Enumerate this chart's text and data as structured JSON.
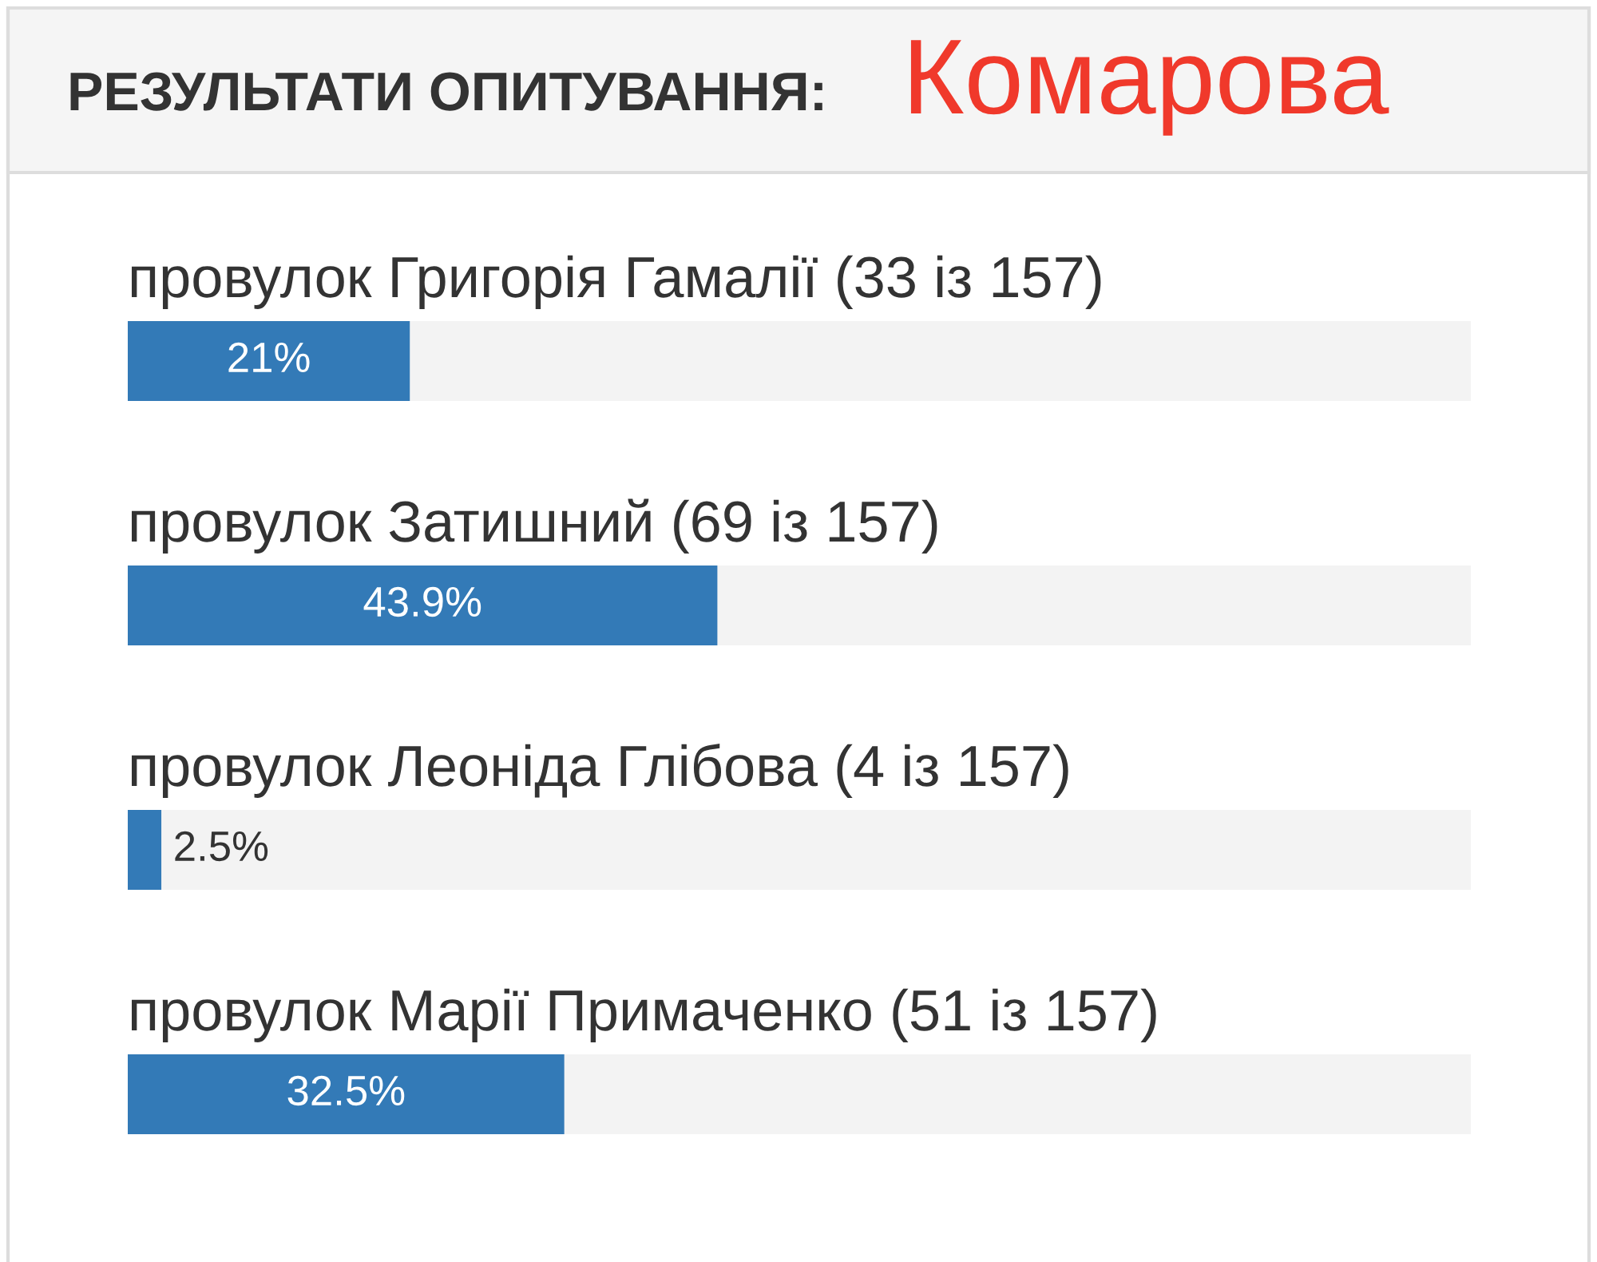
{
  "chart_data": {
    "type": "bar",
    "orientation": "horizontal",
    "title": "РЕЗУЛЬТАТИ ОПИТУВАННЯ:",
    "subtitle": "Комарова",
    "categories": [
      "провулок Григорія Гамалії (33 із 157)",
      "провулок Затишний (69 із 157)",
      "провулок Леоніда Глібова (4 із 157)",
      "провулок Марії Примаченко (51 із 157)"
    ],
    "values": [
      21,
      43.9,
      2.5,
      32.5
    ],
    "value_labels": [
      "21%",
      "43.9%",
      "2.5%",
      "32.5%"
    ],
    "color": "#337ab7",
    "xlim": [
      0,
      100
    ],
    "tick_labels": "y"
  }
}
